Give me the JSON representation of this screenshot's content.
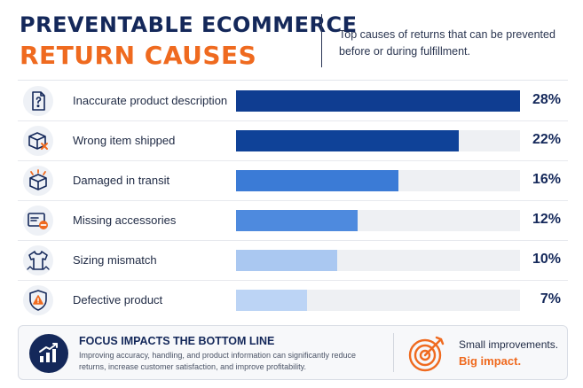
{
  "header": {
    "title_line1": "PREVENTABLE ECOMMERCE",
    "title_line2": "RETURN CAUSES",
    "subtitle": "Top causes of returns that can be prevented before or during fulfillment."
  },
  "colors": {
    "title_navy": "#14285a",
    "accent_orange": "#ef6a1f",
    "track": "#eef0f3"
  },
  "chart_data": {
    "type": "bar",
    "orientation": "horizontal",
    "categories": [
      "Inaccurate product description",
      "Wrong item shipped",
      "Damaged in transit",
      "Missing accessories",
      "Sizing mismatch",
      "Defective product"
    ],
    "values": [
      28,
      22,
      16,
      12,
      10,
      7
    ],
    "value_labels": [
      "28%",
      "22%",
      "16%",
      "12%",
      "10%",
      "7%"
    ],
    "xlim": [
      0,
      28
    ],
    "bar_colors": [
      "#0f3d91",
      "#0f4298",
      "#3b7bd6",
      "#4e8ade",
      "#aac8f1",
      "#bcd4f5"
    ],
    "icons": [
      "document-question-icon",
      "box-x-icon",
      "damaged-box-icon",
      "card-minus-icon",
      "shirt-icon",
      "warning-shield-icon"
    ],
    "grid": false,
    "legend": "none"
  },
  "footer": {
    "heading": "FOCUS IMPACTS THE BOTTOM LINE",
    "body": "Improving accuracy, handling, and product information can significantly reduce returns, increase customer satisfaction, and improve profitability.",
    "icon": "growth-chart-icon",
    "tagline_small": "Small improvements.",
    "tagline_big": "Big impact.",
    "target_icon": "target-icon"
  }
}
